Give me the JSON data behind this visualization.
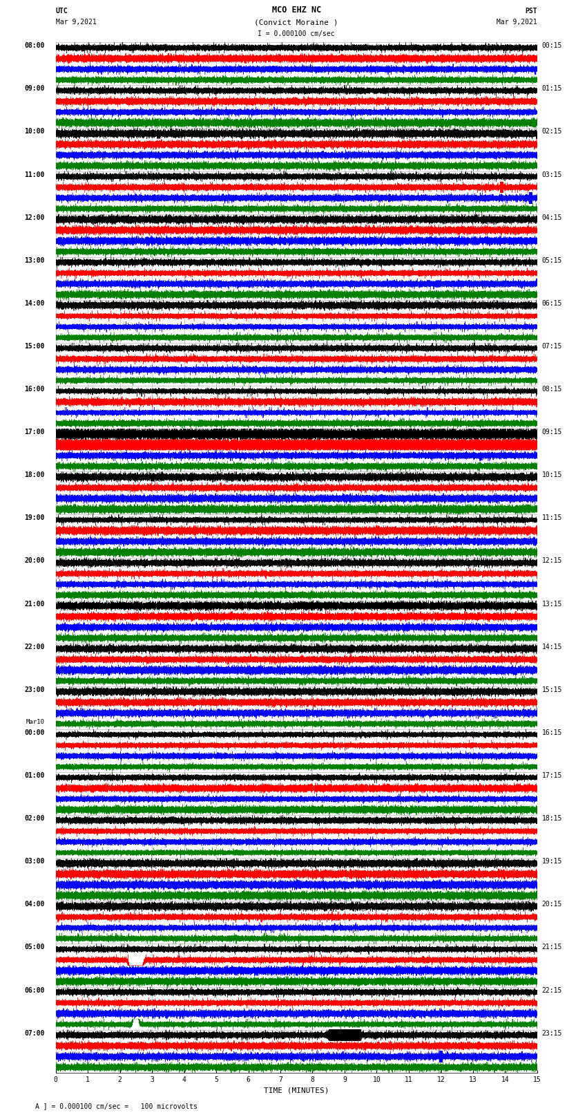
{
  "title_line1": "MCO EHZ NC",
  "title_line2": "(Convict Moraine )",
  "scale_text": "I = 0.000100 cm/sec",
  "utc_label": "UTC",
  "utc_date": "Mar 9,2021",
  "pst_label": "PST",
  "pst_date": "Mar 9,2021",
  "xlabel": "TIME (MINUTES)",
  "footer_text": "A ] = 0.000100 cm/sec =   100 microvolts",
  "left_times_utc": [
    "08:00",
    "09:00",
    "10:00",
    "11:00",
    "12:00",
    "13:00",
    "14:00",
    "15:00",
    "16:00",
    "17:00",
    "18:00",
    "19:00",
    "20:00",
    "21:00",
    "22:00",
    "23:00",
    "00:00",
    "01:00",
    "02:00",
    "03:00",
    "04:00",
    "05:00",
    "06:00",
    "07:00"
  ],
  "mar10_row": 16,
  "right_times_pst": [
    "00:15",
    "01:15",
    "02:15",
    "03:15",
    "04:15",
    "05:15",
    "06:15",
    "07:15",
    "08:15",
    "09:15",
    "10:15",
    "11:15",
    "12:15",
    "13:15",
    "14:15",
    "15:15",
    "16:15",
    "17:15",
    "18:15",
    "19:15",
    "20:15",
    "21:15",
    "22:15",
    "23:15"
  ],
  "num_rows": 24,
  "traces_per_row": 4,
  "colors": [
    "black",
    "red",
    "blue",
    "green"
  ],
  "minutes_per_row": 15,
  "bg_color": "white",
  "grid_color": "#aaaaaa",
  "title_fontsize": 8.5,
  "label_fontsize": 8,
  "tick_fontsize": 7,
  "footer_fontsize": 7
}
